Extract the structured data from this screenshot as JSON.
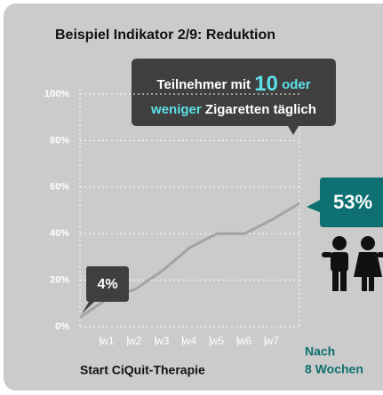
{
  "chart_data": {
    "type": "line",
    "title": "Beispiel Indikator 2/9: Reduktion",
    "callout": [
      "Teilnehmer mit",
      "10",
      "oder",
      "weniger",
      "Zigaretten täglich"
    ],
    "start_label": "Start CiQuit-Therapie",
    "end_label": [
      "Nach",
      "8 Wochen"
    ],
    "categories": [
      null,
      "w1",
      "w2",
      "w3",
      "w4",
      "w5",
      "w6",
      "w7",
      null
    ],
    "values": [
      4,
      12,
      16,
      24,
      34,
      40,
      40,
      46,
      53
    ],
    "value_labels": [
      "4%",
      null,
      null,
      null,
      null,
      null,
      null,
      null,
      "53%"
    ],
    "color": "#a3a3a3",
    "ylim": [
      0,
      100
    ],
    "yticks": [
      {
        "value": 0,
        "label": "0%"
      },
      {
        "value": 20,
        "label": "20%"
      },
      {
        "value": 40,
        "label": "40%"
      },
      {
        "value": 60,
        "label": "60%"
      },
      {
        "value": 80,
        "label": "80%"
      },
      {
        "value": 100,
        "label": "100%"
      }
    ],
    "grid": true
  }
}
